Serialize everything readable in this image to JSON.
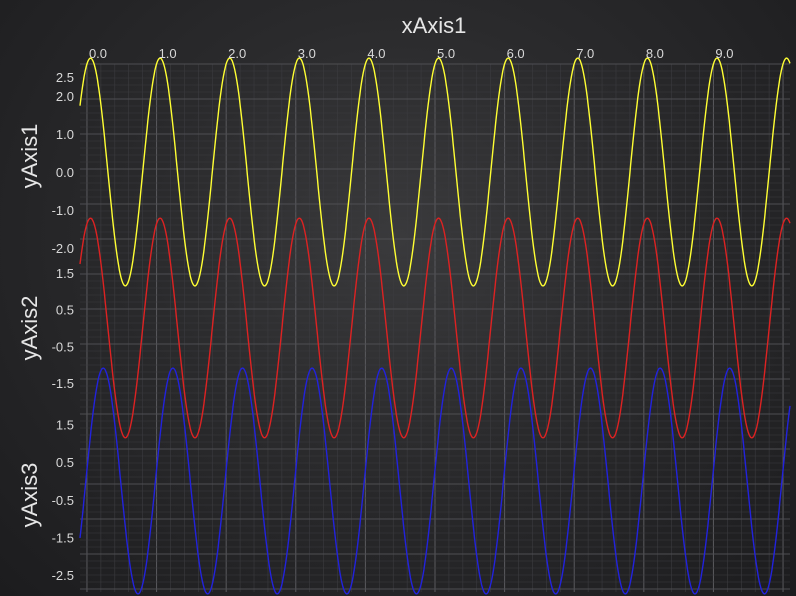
{
  "chart_data": {
    "type": "line",
    "x_axis": {
      "title": "xAxis1",
      "range": [
        -0.1,
        10.1
      ],
      "tick_labels": [
        "0.0",
        "1.0",
        "2.0",
        "3.0",
        "4.0",
        "5.0",
        "6.0",
        "7.0",
        "8.0",
        "9.0"
      ],
      "tick_values": [
        0,
        1,
        2,
        3,
        4,
        5,
        6,
        7,
        8,
        9
      ],
      "position": "top"
    },
    "y_axes": [
      {
        "title": "yAxis1",
        "range": [
          -2.95,
          2.95
        ],
        "tick_labels": [
          "2.5",
          "2.0",
          "1.0",
          "0.0",
          "-1.0",
          "-2.0"
        ],
        "tick_values": [
          2.5,
          2.0,
          1.0,
          0.0,
          -1.0,
          -2.0
        ]
      },
      {
        "title": "yAxis2",
        "range": [
          -2.95,
          2.95
        ],
        "tick_labels": [
          "1.5",
          "0.5",
          "-0.5",
          "-1.5"
        ],
        "tick_values": [
          1.5,
          0.5,
          -0.5,
          -1.5
        ]
      },
      {
        "title": "yAxis3",
        "range": [
          -2.95,
          2.95
        ],
        "tick_labels": [
          "1.5",
          "0.5",
          "-0.5",
          "-1.5",
          "-2.5"
        ],
        "tick_values": [
          1.5,
          0.5,
          -0.5,
          -1.5,
          -2.5
        ]
      }
    ],
    "series": [
      {
        "color": "#ffff33",
        "axis": 0,
        "amplitude": 3,
        "frequency": 1.0,
        "phase": 1.25
      },
      {
        "color": "#dd2222",
        "axis": 1,
        "amplitude": 3,
        "frequency": 1.0,
        "phase": 1.25
      },
      {
        "color": "#2222dd",
        "axis": 2,
        "amplitude": 3,
        "frequency": 1.0,
        "phase": 0.1
      }
    ],
    "grid": true
  }
}
